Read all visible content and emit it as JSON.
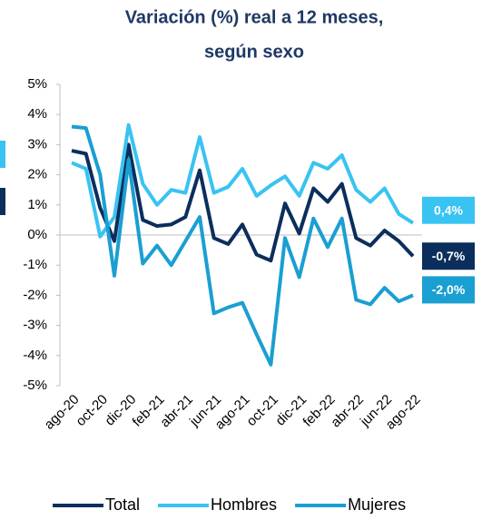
{
  "chart_data": {
    "type": "line",
    "title": [
      "Variación (%) real a 12 meses,",
      "según sexo"
    ],
    "categories": [
      "ago-20",
      null,
      "oct-20",
      null,
      "dic-20",
      null,
      "feb-21",
      null,
      "abr-21",
      null,
      "jun-21",
      null,
      "ago-21",
      null,
      "oct-21",
      null,
      "dic-21",
      null,
      "feb-22",
      null,
      "abr-22",
      null,
      "jun-22",
      null,
      "ago-22"
    ],
    "ylim": [
      -5,
      5
    ],
    "yticks": [
      {
        "value": -5,
        "label": "-5%"
      },
      {
        "value": -4,
        "label": "-4%"
      },
      {
        "value": -3,
        "label": "-3%"
      },
      {
        "value": -2,
        "label": "-2%"
      },
      {
        "value": -1,
        "label": "-1%"
      },
      {
        "value": 0,
        "label": "0%"
      },
      {
        "value": 1,
        "label": "1%"
      },
      {
        "value": 2,
        "label": "2%"
      },
      {
        "value": 3,
        "label": "3%"
      },
      {
        "value": 4,
        "label": "4%"
      },
      {
        "value": 5,
        "label": "5%"
      }
    ],
    "legend": "bottom",
    "series": [
      {
        "name": "Total",
        "color": "#0b2e5c",
        "values": [
          2.8,
          2.7,
          0.9,
          -0.2,
          3.0,
          0.5,
          0.3,
          0.35,
          0.6,
          2.15,
          -0.1,
          -0.3,
          0.35,
          -0.65,
          -0.85,
          1.05,
          0.05,
          1.55,
          1.1,
          1.7,
          -0.1,
          -0.35,
          0.15,
          -0.2,
          -0.7
        ],
        "value_labels": [
          null,
          null,
          null,
          null,
          null,
          null,
          null,
          null,
          null,
          null,
          null,
          null,
          null,
          null,
          null,
          null,
          null,
          null,
          null,
          null,
          null,
          null,
          null,
          null,
          "-0,7%"
        ]
      },
      {
        "name": "Hombres",
        "color": "#39c3f2",
        "values": [
          2.4,
          2.2,
          -0.05,
          0.6,
          3.65,
          1.7,
          1.0,
          1.5,
          1.4,
          3.25,
          1.4,
          1.6,
          2.2,
          1.3,
          1.65,
          1.95,
          1.3,
          2.4,
          2.2,
          2.65,
          1.5,
          1.1,
          1.55,
          0.7,
          0.4
        ],
        "value_labels": [
          null,
          null,
          null,
          null,
          null,
          null,
          null,
          null,
          null,
          null,
          null,
          null,
          null,
          null,
          null,
          null,
          null,
          null,
          null,
          null,
          null,
          null,
          null,
          null,
          "0,4%"
        ]
      },
      {
        "name": "Mujeres",
        "color": "#1a9fd2",
        "values": [
          3.6,
          3.55,
          2.0,
          -1.35,
          2.5,
          -0.95,
          -0.35,
          -1.0,
          -0.2,
          0.6,
          -2.6,
          -2.4,
          -2.25,
          -3.3,
          -4.3,
          -0.1,
          -1.4,
          0.55,
          -0.4,
          0.55,
          -2.15,
          -2.3,
          -1.75,
          -2.2,
          -2.0
        ],
        "value_labels": [
          null,
          null,
          null,
          null,
          null,
          null,
          null,
          null,
          null,
          null,
          null,
          null,
          null,
          null,
          null,
          null,
          null,
          null,
          null,
          null,
          null,
          null,
          null,
          null,
          "-2,0%"
        ]
      }
    ]
  }
}
